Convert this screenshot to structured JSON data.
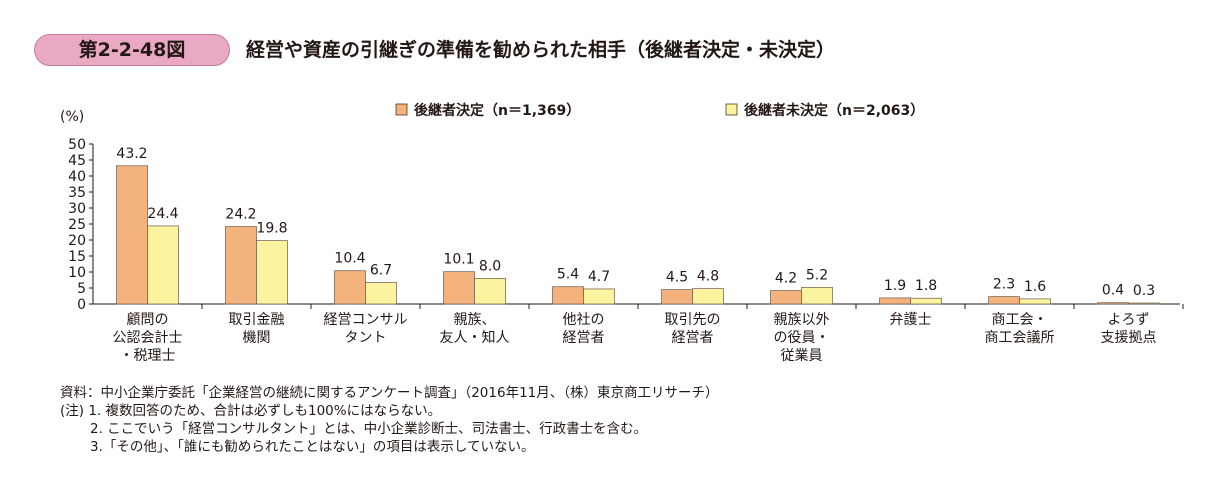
{
  "figure": {
    "number": "第2-2-48図",
    "title": "経営や資産の引継ぎの準備を勧められた相手（後継者決定・未決定）"
  },
  "chart_data": {
    "type": "bar",
    "ylabel": "(%)",
    "ylim": [
      0,
      50
    ],
    "yticks": [
      "0",
      "5",
      "10",
      "15",
      "20",
      "25",
      "30",
      "35",
      "40",
      "45",
      "50"
    ],
    "legend_position": "top-center",
    "grid": false,
    "categories": [
      [
        "顧問の",
        "公認会計士",
        "・税理士"
      ],
      [
        "取引金融",
        "機関"
      ],
      [
        "経営コンサル",
        "タント"
      ],
      [
        "親族、",
        "友人・知人"
      ],
      [
        "他社の",
        "経営者"
      ],
      [
        "取引先の",
        "経営者"
      ],
      [
        "親族以外",
        "の役員・",
        "従業員"
      ],
      [
        "弁護士"
      ],
      [
        "商工会・",
        "商工会議所"
      ],
      [
        "よろず",
        "支援拠点"
      ]
    ],
    "series": [
      {
        "name": "後継者決定（n＝1,369）",
        "color": "#f4b37c",
        "values": [
          43.2,
          24.2,
          10.4,
          10.1,
          5.4,
          4.5,
          4.2,
          1.9,
          2.3,
          0.4
        ],
        "labels": [
          "43.2",
          "24.2",
          "10.4",
          "10.1",
          "5.4",
          "4.5",
          "4.2",
          "1.9",
          "2.3",
          "0.4"
        ]
      },
      {
        "name": "後継者未決定（n＝2,063）",
        "color": "#fbf3a0",
        "values": [
          24.4,
          19.8,
          6.7,
          8.0,
          4.7,
          4.8,
          5.2,
          1.8,
          1.6,
          0.3
        ],
        "labels": [
          "24.4",
          "19.8",
          "6.7",
          "8.0",
          "4.7",
          "4.8",
          "5.2",
          "1.8",
          "1.6",
          "0.3"
        ]
      }
    ]
  },
  "notes": {
    "source": "資料：中小企業庁委託「企業経営の継続に関するアンケート調査」（2016年11月、（株）東京商工リサーチ）",
    "note1": "(注) 1. 複数回答のため、合計は必ずしも100%にはならない。",
    "note2": "2. ここでいう「経営コンサルタント」とは、中小企業診断士、司法書士、行政書士を含む。",
    "note3": "3.「その他」、「誰にも勧められたことはない」の項目は表示していない。"
  }
}
